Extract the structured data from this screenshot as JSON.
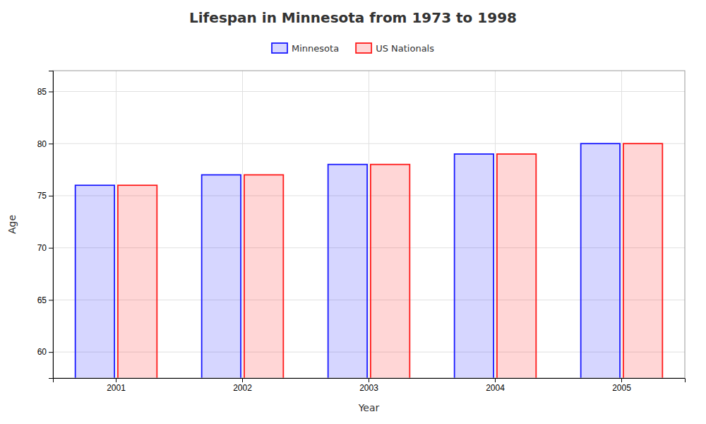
{
  "chart_data": {
    "type": "bar",
    "title": "Lifespan in Minnesota from 1973 to 1998",
    "x_label": "Year",
    "y_label": "Age",
    "categories": [
      "2001",
      "2002",
      "2003",
      "2004",
      "2005"
    ],
    "series": [
      {
        "name": "Minnesota",
        "color": "#1a1aff",
        "values": [
          76,
          77,
          78,
          79,
          80
        ]
      },
      {
        "name": "US Nationals",
        "color": "#ff1a1a",
        "values": [
          76,
          77,
          78,
          79,
          80
        ]
      }
    ],
    "ylim": [
      57.5,
      87
    ],
    "yticks": [
      60,
      65,
      70,
      75,
      80,
      85
    ],
    "grid": true,
    "legend": "top"
  }
}
